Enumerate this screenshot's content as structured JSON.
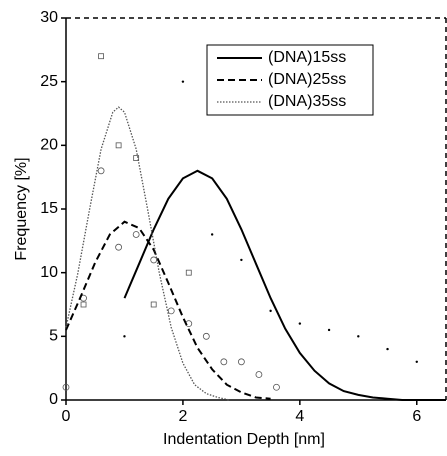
{
  "chart_data": {
    "type": "line",
    "xlabel": "Indentation Depth [nm]",
    "ylabel": "Frequency [%]",
    "xlim": [
      0,
      6.5
    ],
    "ylim": [
      0,
      30
    ],
    "xticks": [
      0,
      2,
      4,
      6
    ],
    "yticks": [
      0,
      5,
      10,
      15,
      20,
      25,
      30
    ],
    "legend": "upper right",
    "series": [
      {
        "name": "(DNA)15ss",
        "color": "#000000",
        "dash": "solid",
        "x": [
          1.0,
          1.25,
          1.5,
          1.75,
          2.0,
          2.25,
          2.5,
          2.75,
          3.0,
          3.25,
          3.5,
          3.75,
          4.0,
          4.25,
          4.5,
          4.75,
          5.0,
          5.25,
          5.5,
          5.75,
          6.0,
          6.5
        ],
        "values": [
          8.0,
          10.7,
          13.4,
          15.8,
          17.4,
          18,
          17.4,
          15.8,
          13.4,
          10.7,
          8.0,
          5.6,
          3.7,
          2.3,
          1.3,
          0.7,
          0.4,
          0.2,
          0.1,
          0,
          0,
          0
        ]
      },
      {
        "name": "(DNA)25ss",
        "color": "#000000",
        "dash": "dashed",
        "x": [
          0,
          0.25,
          0.5,
          0.75,
          1.0,
          1.25,
          1.5,
          1.75,
          2.0,
          2.25,
          2.5,
          2.75,
          3.0,
          3.25,
          3.5
        ],
        "values": [
          5.5,
          8.1,
          10.8,
          13.0,
          14.0,
          13.5,
          11.8,
          9.2,
          6.5,
          4.1,
          2.4,
          1.2,
          0.6,
          0.2,
          0.1
        ]
      },
      {
        "name": "(DNA)35ss",
        "color": "#555555",
        "dash": "dotted",
        "x": [
          0,
          0.2,
          0.4,
          0.6,
          0.8,
          0.9,
          1.0,
          1.2,
          1.4,
          1.6,
          1.8,
          2.0,
          2.2,
          2.4,
          2.6,
          2.8
        ],
        "values": [
          5.7,
          9.9,
          14.9,
          19.7,
          22.6,
          23,
          22.6,
          19.7,
          14.9,
          9.9,
          5.7,
          2.9,
          1.2,
          0.5,
          0.2,
          0
        ]
      }
    ],
    "points": [
      {
        "marker": "square",
        "x": [
          0.6,
          0.9,
          1.2,
          1.5,
          2.1,
          0.3
        ],
        "values": [
          27,
          20,
          19,
          7.5,
          10,
          7.5
        ]
      },
      {
        "marker": "circle",
        "x": [
          0,
          0.3,
          0.6,
          0.9,
          1.2,
          1.5,
          1.8,
          2.1,
          2.4,
          2.7,
          3.0,
          3.3,
          3.6
        ],
        "values": [
          1,
          8,
          18,
          12,
          13,
          11,
          7,
          6,
          5,
          3,
          3,
          2,
          1
        ]
      },
      {
        "marker": "dot",
        "x": [
          1.0,
          2.0,
          2.5,
          3.0,
          3.5,
          4.0,
          4.5,
          5.0,
          5.5,
          6.0
        ],
        "values": [
          5,
          25,
          13,
          11,
          7,
          6,
          5.5,
          5,
          4,
          3
        ]
      }
    ]
  }
}
